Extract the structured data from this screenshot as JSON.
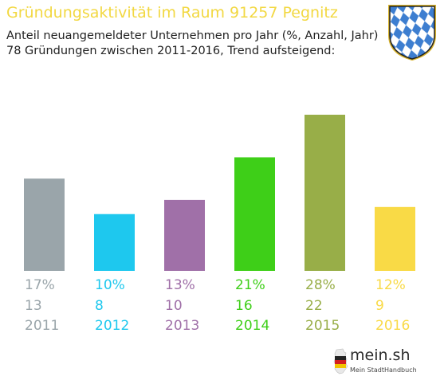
{
  "header": {
    "title": "Gründungsaktivität im Raum 91257 Pegnitz",
    "subtitle_line1": "Anteil neuangemeldeter Unternehmen pro Jahr (%, Anzahl, Jahr)",
    "subtitle_line2": "78 Gründungen zwischen 2011-2016, Trend aufsteigend:"
  },
  "crest": {
    "icon": "bavarian-crest-icon",
    "colors": [
      "#ffffff",
      "#3d7ed0"
    ]
  },
  "logo": {
    "brand": "mein.sh",
    "tagline": "Mein StadtHandbuch",
    "icon": "germany-map-icon"
  },
  "chart_data": {
    "type": "bar",
    "categories": [
      "2011",
      "2012",
      "2013",
      "2014",
      "2015",
      "2016"
    ],
    "values": [
      13,
      8,
      10,
      16,
      22,
      9
    ],
    "percent_labels": [
      "17%",
      "10%",
      "13%",
      "21%",
      "28%",
      "12%"
    ],
    "colors": [
      "#9aa5aa",
      "#1ec8ee",
      "#a070a8",
      "#3ecf18",
      "#98ae48",
      "#f9da46"
    ],
    "grid": false,
    "legend": "none"
  }
}
